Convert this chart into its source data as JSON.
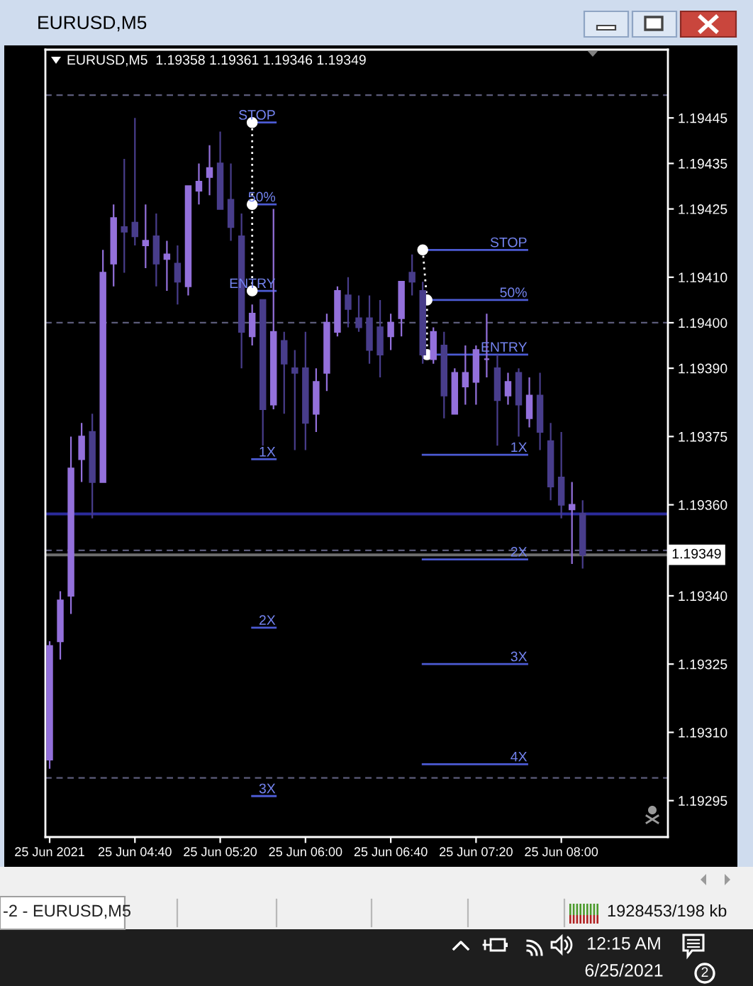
{
  "chart_data": {
    "type": "candlestick",
    "title": "EURUSD,M5",
    "subtitle": "EURUSD,M5  1.19358 1.19361 1.19346 1.19349",
    "xlim": [
      "2021-06-25T03:58",
      "2021-06-25T08:50"
    ],
    "ylim": [
      1.19287,
      1.1946
    ],
    "xticks": [
      {
        "value": "2021-06-25T04:00",
        "label": "25 Jun 2021"
      },
      {
        "value": "2021-06-25T04:40",
        "label": "25 Jun 04:40"
      },
      {
        "value": "2021-06-25T05:20",
        "label": "25 Jun 05:20"
      },
      {
        "value": "2021-06-25T06:00",
        "label": "25 Jun 06:00"
      },
      {
        "value": "2021-06-25T06:40",
        "label": "25 Jun 06:40"
      },
      {
        "value": "2021-06-25T07:20",
        "label": "25 Jun 07:20"
      },
      {
        "value": "2021-06-25T08:00",
        "label": "25 Jun 08:00"
      }
    ],
    "yticks": [
      1.19445,
      1.19435,
      1.19425,
      {
        "value": 1.1941,
        "label": "1.19410"
      },
      {
        "value": 1.194,
        "label": "1.19400"
      },
      {
        "value": 1.1939,
        "label": "1.19390"
      },
      1.19375,
      {
        "value": 1.1936,
        "label": "1.19360"
      },
      {
        "value": 1.1934,
        "label": "1.19340"
      },
      1.19325,
      {
        "value": 1.1931,
        "label": "1.19310"
      },
      1.19295
    ],
    "series": [
      {
        "x": [
          "2021-06-25T04:00",
          "2021-06-25T04:05",
          "2021-06-25T04:10",
          "2021-06-25T04:15",
          "2021-06-25T04:20",
          "2021-06-25T04:25",
          "2021-06-25T04:30",
          "2021-06-25T04:35",
          "2021-06-25T04:40",
          "2021-06-25T04:45",
          "2021-06-25T04:50",
          "2021-06-25T04:55",
          "2021-06-25T05:00",
          "2021-06-25T05:05",
          "2021-06-25T05:10",
          "2021-06-25T05:15",
          "2021-06-25T05:20",
          "2021-06-25T05:25",
          "2021-06-25T05:30",
          "2021-06-25T05:35",
          "2021-06-25T05:40",
          "2021-06-25T05:45",
          "2021-06-25T05:50",
          "2021-06-25T05:55",
          "2021-06-25T06:00",
          "2021-06-25T06:05",
          "2021-06-25T06:10",
          "2021-06-25T06:15",
          "2021-06-25T06:20",
          "2021-06-25T06:25",
          "2021-06-25T06:30",
          "2021-06-25T06:35",
          "2021-06-25T06:40",
          "2021-06-25T06:45",
          "2021-06-25T06:50",
          "2021-06-25T06:55",
          "2021-06-25T07:00",
          "2021-06-25T07:05",
          "2021-06-25T07:10",
          "2021-06-25T07:15",
          "2021-06-25T07:20",
          "2021-06-25T07:25",
          "2021-06-25T07:30",
          "2021-06-25T07:35",
          "2021-06-25T07:40",
          "2021-06-25T07:45",
          "2021-06-25T07:50",
          "2021-06-25T07:55",
          "2021-06-25T08:00",
          "2021-06-25T08:05",
          "2021-06-25T08:10"
        ],
        "ohlc": [
          [
            1.19304,
            1.1933,
            1.19302,
            1.19329
          ],
          [
            1.1933,
            1.19341,
            1.19326,
            1.19339
          ],
          [
            1.1934,
            1.19375,
            1.19336,
            1.19368
          ],
          [
            1.1937,
            1.19378,
            1.19365,
            1.19375
          ],
          [
            1.19376,
            1.1938,
            1.19357,
            1.19365
          ],
          [
            1.19365,
            1.19416,
            1.19365,
            1.19411
          ],
          [
            1.19413,
            1.19426,
            1.19408,
            1.19423
          ],
          [
            1.19421,
            1.19436,
            1.19411,
            1.1942
          ],
          [
            1.19422,
            1.19445,
            1.19417,
            1.19419
          ],
          [
            1.19417,
            1.19426,
            1.19412,
            1.19418
          ],
          [
            1.19419,
            1.19424,
            1.19408,
            1.19413
          ],
          [
            1.19414,
            1.19418,
            1.19407,
            1.19415
          ],
          [
            1.19413,
            1.19417,
            1.19404,
            1.19409
          ],
          [
            1.19408,
            1.1943,
            1.19406,
            1.1943
          ],
          [
            1.19429,
            1.19435,
            1.19426,
            1.19431
          ],
          [
            1.19432,
            1.19439,
            1.19428,
            1.19434
          ],
          [
            1.19435,
            1.19442,
            1.19425,
            1.19425
          ],
          [
            1.19427,
            1.19435,
            1.19418,
            1.19421
          ],
          [
            1.19419,
            1.19424,
            1.1939,
            1.19398
          ],
          [
            1.19397,
            1.19404,
            1.19395,
            1.19402
          ],
          [
            1.19405,
            1.19405,
            1.19373,
            1.19381
          ],
          [
            1.19382,
            1.19425,
            1.19381,
            1.19398
          ],
          [
            1.19396,
            1.19398,
            1.1938,
            1.19391
          ],
          [
            1.1939,
            1.19394,
            1.19372,
            1.19389
          ],
          [
            1.1939,
            1.19398,
            1.19372,
            1.19378
          ],
          [
            1.1938,
            1.1939,
            1.19376,
            1.19387
          ],
          [
            1.19389,
            1.19402,
            1.19385,
            1.194
          ],
          [
            1.19398,
            1.19408,
            1.19397,
            1.19407
          ],
          [
            1.19406,
            1.1941,
            1.19399,
            1.19403
          ],
          [
            1.19401,
            1.19406,
            1.19398,
            1.19399
          ],
          [
            1.19401,
            1.19406,
            1.19391,
            1.19394
          ],
          [
            1.19399,
            1.19405,
            1.19388,
            1.19393
          ],
          [
            1.19397,
            1.19402,
            1.19394,
            1.194
          ],
          [
            1.19401,
            1.19409,
            1.19397,
            1.19409
          ],
          [
            1.19411,
            1.19415,
            1.19406,
            1.19409
          ],
          [
            1.19407,
            1.19409,
            1.19391,
            1.19393
          ],
          [
            1.19392,
            1.19399,
            1.19391,
            1.19398
          ],
          [
            1.19395,
            1.19398,
            1.19379,
            1.19384
          ],
          [
            1.1938,
            1.1939,
            1.1938,
            1.19389
          ],
          [
            1.19386,
            1.19395,
            1.19382,
            1.19389
          ],
          [
            1.19387,
            1.19395,
            1.19382,
            1.19394
          ],
          [
            1.19392,
            1.19402,
            1.19388,
            1.19392
          ],
          [
            1.1939,
            1.19393,
            1.19373,
            1.19383
          ],
          [
            1.19384,
            1.19389,
            1.19382,
            1.19387
          ],
          [
            1.19389,
            1.1939,
            1.19375,
            1.19382
          ],
          [
            1.19379,
            1.19388,
            1.19377,
            1.19384
          ],
          [
            1.19384,
            1.19389,
            1.19372,
            1.19376
          ],
          [
            1.19374,
            1.19378,
            1.19361,
            1.19364
          ],
          [
            1.19366,
            1.19376,
            1.19357,
            1.1936
          ],
          [
            1.19359,
            1.19365,
            1.19347,
            1.1936
          ],
          [
            1.19358,
            1.19361,
            1.19346,
            1.19349
          ]
        ],
        "colors": [
          "#9370db",
          "#9370db",
          "#9370db",
          "#9370db",
          "#483d8b",
          "#9370db",
          "#9370db",
          "#483d8b",
          "#483d8b",
          "#9370db",
          "#483d8b",
          "#9370db",
          "#483d8b",
          "#9370db",
          "#9370db",
          "#9370db",
          "#483d8b",
          "#483d8b",
          "#483d8b",
          "#9370db",
          "#483d8b",
          "#9370db",
          "#483d8b",
          "#483d8b",
          "#483d8b",
          "#9370db",
          "#9370db",
          "#9370db",
          "#483d8b",
          "#483d8b",
          "#483d8b",
          "#483d8b",
          "#9370db",
          "#9370db",
          "#483d8b",
          "#483d8b",
          "#9370db",
          "#483d8b",
          "#9370db",
          "#9370db",
          "#9370db",
          "#9370db",
          "#483d8b",
          "#9370db",
          "#483d8b",
          "#9370db",
          "#483d8b",
          "#483d8b",
          "#483d8b",
          "#9370db",
          "#483d8b"
        ]
      },
      {
        "type": "line",
        "x": [
          "2021-06-25T05:35",
          "2021-06-25T05:46"
        ],
        "values": [
          1.19444,
          1.19444
        ],
        "color": "#4c5bd4"
      },
      {
        "type": "line",
        "x": [
          "2021-06-25T05:35",
          "2021-06-25T05:46"
        ],
        "values": [
          1.19426,
          1.19426
        ],
        "color": "#4c5bd4"
      },
      {
        "type": "line",
        "x": [
          "2021-06-25T05:35",
          "2021-06-25T05:46"
        ],
        "values": [
          1.19407,
          1.19407
        ],
        "color": "#4c5bd4"
      },
      {
        "type": "line",
        "x": [
          "2021-06-25T05:35",
          "2021-06-25T05:46"
        ],
        "values": [
          1.1937,
          1.1937
        ],
        "color": "#4c5bd4"
      },
      {
        "type": "line",
        "x": [
          "2021-06-25T05:35",
          "2021-06-25T05:46"
        ],
        "values": [
          1.19333,
          1.19333
        ],
        "color": "#4c5bd4"
      },
      {
        "type": "line",
        "x": [
          "2021-06-25T05:35",
          "2021-06-25T05:46"
        ],
        "values": [
          1.19296,
          1.19296
        ],
        "color": "#4c5bd4"
      },
      {
        "type": "line",
        "x": [
          "2021-06-25T05:35",
          "2021-06-25T05:35",
          "2021-06-25T05:35"
        ],
        "values": [
          1.19444,
          1.19426,
          1.19407
        ],
        "color": "#ffffff",
        "line_style": "dotted",
        "marker": "circle"
      },
      {
        "type": "line",
        "x": [
          "2021-06-25T06:55",
          "2021-06-25T07:44"
        ],
        "values": [
          1.19416,
          1.19416
        ],
        "color": "#4c5bd4"
      },
      {
        "type": "line",
        "x": [
          "2021-06-25T06:57",
          "2021-06-25T07:44"
        ],
        "values": [
          1.19405,
          1.19405
        ],
        "color": "#4c5bd4"
      },
      {
        "type": "line",
        "x": [
          "2021-06-25T06:55",
          "2021-06-25T07:44"
        ],
        "values": [
          1.19393,
          1.19393
        ],
        "color": "#4c5bd4"
      },
      {
        "type": "line",
        "x": [
          "2021-06-25T06:55",
          "2021-06-25T07:44"
        ],
        "values": [
          1.19371,
          1.19371
        ],
        "color": "#4c5bd4"
      },
      {
        "type": "line",
        "x": [
          "2021-06-25T06:55",
          "2021-06-25T07:44"
        ],
        "values": [
          1.19348,
          1.19348
        ],
        "color": "#4c5bd4"
      },
      {
        "type": "line",
        "x": [
          "2021-06-25T06:55",
          "2021-06-25T07:44"
        ],
        "values": [
          1.19325,
          1.19325
        ],
        "color": "#4c5bd4"
      },
      {
        "type": "line",
        "x": [
          "2021-06-25T06:55",
          "2021-06-25T07:44"
        ],
        "values": [
          1.19303,
          1.19303
        ],
        "color": "#4c5bd4"
      },
      {
        "type": "line",
        "x": [
          "2021-06-25T06:55",
          "2021-06-25T06:57",
          "2021-06-25T06:57"
        ],
        "values": [
          1.19416,
          1.19405,
          1.19393
        ],
        "color": "#ffffff",
        "line_style": "dotted",
        "marker": "circle"
      }
    ],
    "ref_lines": [
      {
        "axis": "y",
        "value": 1.1945,
        "color": "#5c5c7a",
        "line_style": "dashed"
      },
      {
        "axis": "y",
        "value": 1.194,
        "color": "#5c5c7a",
        "line_style": "dashed"
      },
      {
        "axis": "y",
        "value": 1.1935,
        "color": "#5c5c7a",
        "line_style": "dashed"
      },
      {
        "axis": "y",
        "value": 1.193,
        "color": "#5c5c7a",
        "line_style": "dashed"
      },
      {
        "axis": "y",
        "value": 1.19358,
        "color": "#2b2b9c"
      },
      {
        "axis": "y",
        "value": 1.19349,
        "label": "1.19349",
        "color": "#6e6e6e"
      }
    ],
    "annotations": [
      {
        "text": "STOP",
        "x": "2021-06-25T05:46",
        "y": 1.19444
      },
      {
        "text": "50%",
        "x": "2021-06-25T05:46",
        "y": 1.19426
      },
      {
        "text": "ENTRY",
        "x": "2021-06-25T05:46",
        "y": 1.19407
      },
      {
        "text": "1X",
        "x": "2021-06-25T05:46",
        "y": 1.1937
      },
      {
        "text": "2X",
        "x": "2021-06-25T05:46",
        "y": 1.19333
      },
      {
        "text": "3X",
        "x": "2021-06-25T05:46",
        "y": 1.19296
      },
      {
        "text": "STOP",
        "x": "2021-06-25T07:44",
        "y": 1.19416
      },
      {
        "text": "50%",
        "x": "2021-06-25T07:44",
        "y": 1.19405
      },
      {
        "text": "ENTRY",
        "x": "2021-06-25T07:44",
        "y": 1.19393
      },
      {
        "text": "1X",
        "x": "2021-06-25T07:44",
        "y": 1.19371
      },
      {
        "text": "2X",
        "x": "2021-06-25T07:44",
        "y": 1.19348
      },
      {
        "text": "3X",
        "x": "2021-06-25T07:44",
        "y": 1.19325
      },
      {
        "text": "4X",
        "x": "2021-06-25T07:44",
        "y": 1.19303
      },
      "-2 - EURUSD,M5",
      "1928453/198 kb",
      "12:15 AM",
      "6/25/2021",
      "2"
    ]
  }
}
